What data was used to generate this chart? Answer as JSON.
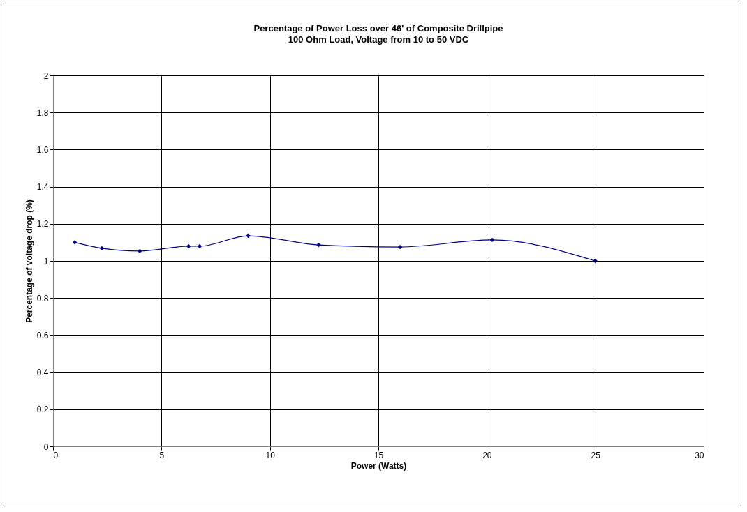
{
  "chart_data": {
    "type": "line",
    "title": "Percentage of Power Loss over 46' of Composite Drillpipe",
    "subtitle": "100 Ohm Load, Voltage from 10 to 50 VDC",
    "xlabel": "Power (Watts)",
    "ylabel": "Percentage of voltage drop (%)",
    "x": [
      1,
      2.25,
      4,
      6.25,
      6.76,
      9,
      12.25,
      16,
      20.25,
      25
    ],
    "series": [
      {
        "color": "#000080",
        "values": [
          1.1,
          1.068,
          1.053,
          1.079,
          1.079,
          1.135,
          1.086,
          1.075,
          1.113,
          1.0
        ]
      }
    ],
    "xlim": [
      0,
      30
    ],
    "xticks": [
      0,
      5,
      10,
      15,
      20,
      25,
      30
    ],
    "ylim": [
      0,
      2
    ],
    "yticks": [
      0,
      0.2,
      0.4,
      0.6,
      0.8,
      1,
      1.2,
      1.4,
      1.6,
      1.8,
      2
    ],
    "grid": true,
    "marker": "diamond",
    "line_style": "solid"
  }
}
